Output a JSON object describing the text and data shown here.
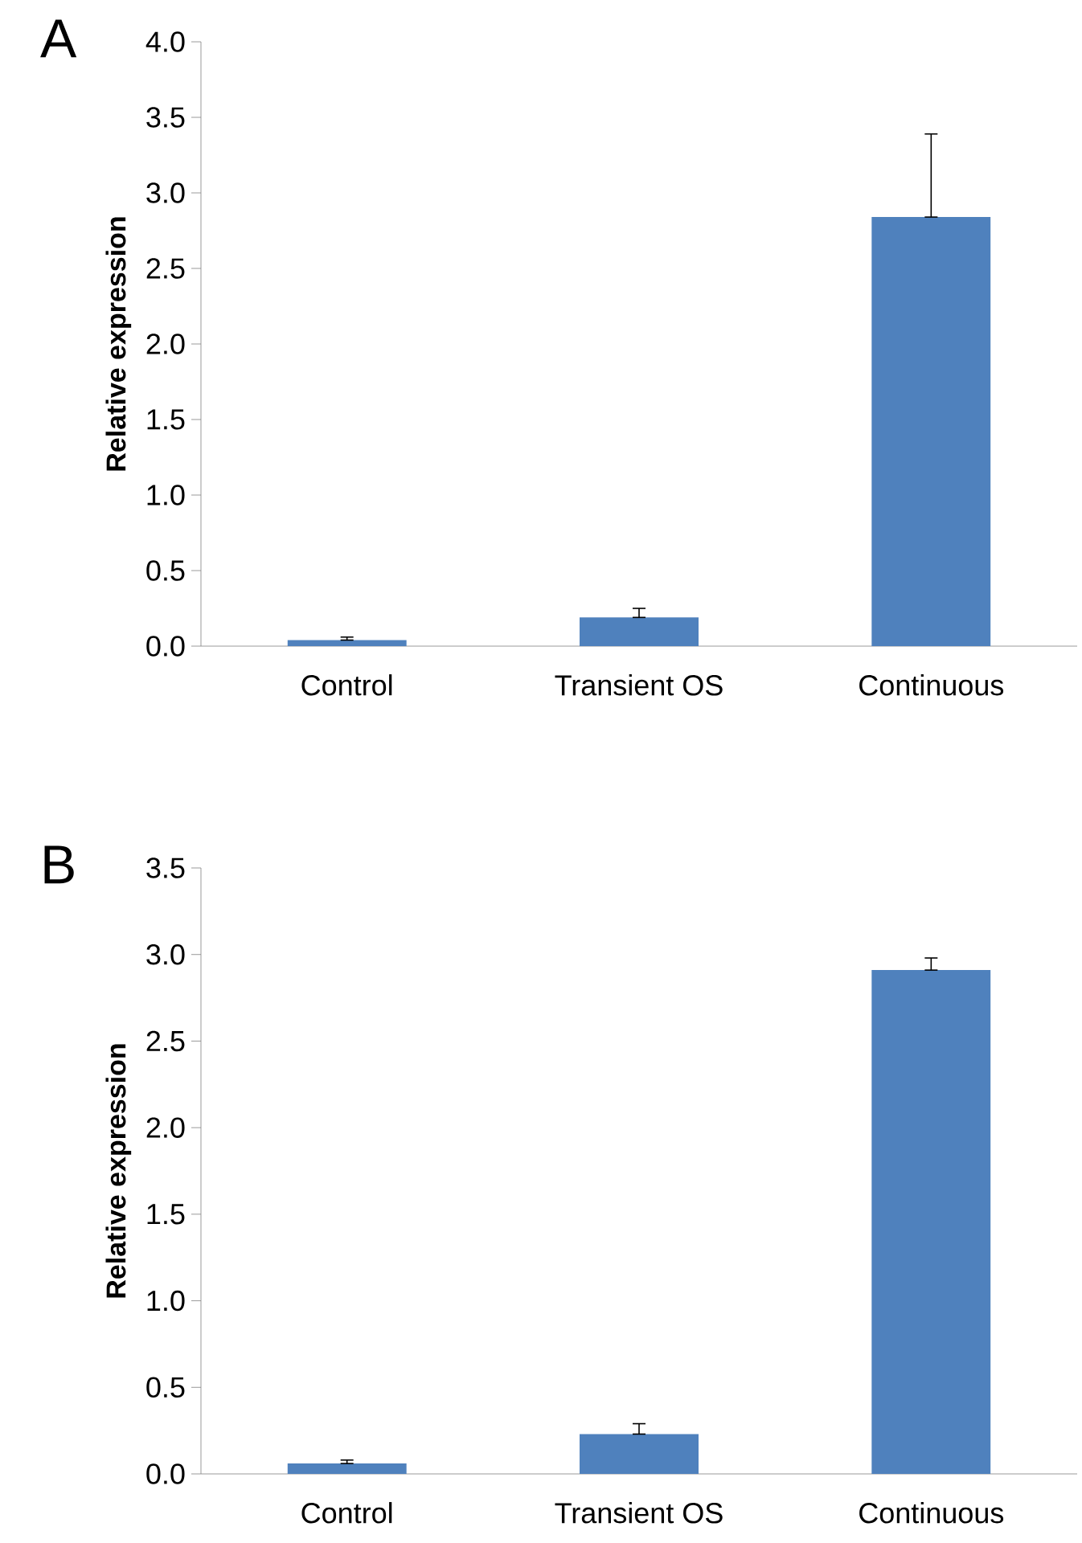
{
  "chart_data": [
    {
      "type": "bar",
      "title": "A",
      "ylabel": "Relative expression",
      "categories": [
        "Control",
        "Transient OS",
        "Continuous"
      ],
      "values": [
        0.04,
        0.19,
        2.84
      ],
      "errors": [
        [
          0.04,
          0.06
        ],
        [
          0.19,
          0.25
        ],
        [
          2.84,
          3.39
        ]
      ],
      "color": "#4f81bd",
      "ylim": [
        0,
        4
      ],
      "yticks": [
        {
          "value": 0,
          "label": "0.0"
        },
        {
          "value": 0.5,
          "label": "0.5"
        },
        {
          "value": 1,
          "label": "1.0"
        },
        {
          "value": 1.5,
          "label": "1.5"
        },
        {
          "value": 2,
          "label": "2.0"
        },
        {
          "value": 2.5,
          "label": "2.5"
        },
        {
          "value": 3,
          "label": "3.0"
        },
        {
          "value": 3.5,
          "label": "3.5"
        },
        {
          "value": 4,
          "label": "4.0"
        }
      ]
    },
    {
      "type": "bar",
      "title": "B",
      "ylabel": "Relative expression",
      "categories": [
        "Control",
        "Transient OS",
        "Continuous"
      ],
      "values": [
        0.06,
        0.23,
        2.91
      ],
      "errors": [
        [
          0.06,
          0.08
        ],
        [
          0.23,
          0.29
        ],
        [
          2.91,
          2.98
        ]
      ],
      "color": "#4f81bd",
      "ylim": [
        0,
        3.5
      ],
      "yticks": [
        {
          "value": 0,
          "label": "0.0"
        },
        {
          "value": 0.5,
          "label": "0.5"
        },
        {
          "value": 1,
          "label": "1.0"
        },
        {
          "value": 1.5,
          "label": "1.5"
        },
        {
          "value": 2,
          "label": "2.0"
        },
        {
          "value": 2.5,
          "label": "2.5"
        },
        {
          "value": 3,
          "label": "3.0"
        },
        {
          "value": 3.5,
          "label": "3.5"
        }
      ]
    }
  ]
}
